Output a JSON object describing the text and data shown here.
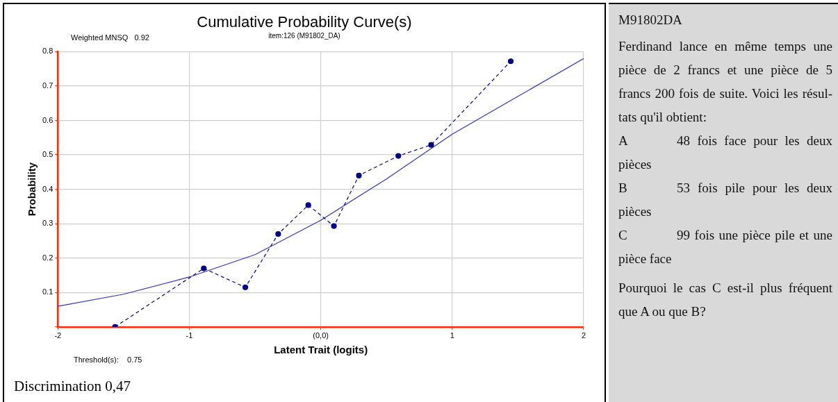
{
  "chart_data": [
    {
      "type": "line",
      "title": "Cumulative Probability Curve(s)",
      "subtitle": "item:126 (M91802_DA)",
      "xlabel": "Latent Trait (logits)",
      "ylabel": "Probability",
      "annotations": [
        "Weighted MNSQ   0.92",
        "Threshold(s):    0.75",
        "Discrimination 0,47"
      ],
      "series": [
        {
          "color": "#00008b",
          "marker": "circle",
          "line_style": "dashed",
          "x": [
            -1.565,
            -0.89,
            -0.574,
            -0.324,
            -0.095,
            0.1,
            0.29,
            0.59,
            0.84,
            1.445
          ],
          "values": [
            0.0,
            0.17,
            0.115,
            0.27,
            0.354,
            0.293,
            0.44,
            0.497,
            0.529,
            0.772
          ]
        },
        {
          "color": "#3333bb",
          "marker": "none",
          "line_style": "solid",
          "x": [
            -2,
            -1.5,
            -1,
            -0.5,
            0,
            0.5,
            1,
            1.5,
            2
          ],
          "values": [
            0.06,
            0.095,
            0.145,
            0.21,
            0.31,
            0.43,
            0.56,
            0.67,
            0.78
          ]
        }
      ],
      "xlim": [
        -2,
        2
      ],
      "xticks": [
        -2,
        -1,
        {
          "value": 0,
          "label": "(0,0)"
        },
        1,
        2
      ],
      "ylim": [
        0,
        0.8
      ],
      "yticks": [
        {
          "value": 0,
          "label": null
        },
        0.1,
        0.2,
        0.3,
        0.4,
        0.5,
        0.6,
        0.7,
        0.8
      ],
      "grid": true,
      "legend": false
    },
    {
      "type": "other",
      "title": "M91802DA",
      "annotations": [
        "Ferdinand lance en même temps une pièce de 2 francs et une pièce de 5 francs 200 fois de suite. Voici les résul-tats qu'il obtient:",
        "A\t48 fois face pour les deux pièces",
        "B\t53 fois pile pour les deux pièces",
        "C\t99 fois une pièce pile et une pièce face",
        "Pourquoi le cas C est-il plus fréquent que A ou que B?"
      ]
    }
  ]
}
